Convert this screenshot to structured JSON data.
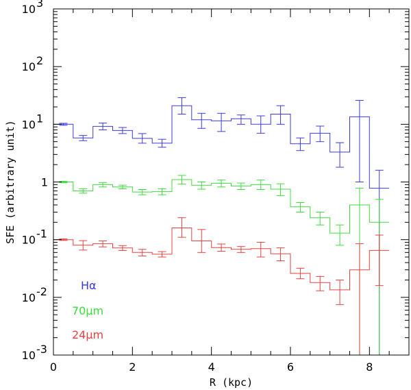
{
  "chart_data": {
    "type": "line",
    "style": "step-histogram-with-error-bars",
    "xlabel": "R (kpc)",
    "ylabel": "SFE (arbitrary unit)",
    "xlim": [
      0,
      9
    ],
    "ylim": [
      0.001,
      1000
    ],
    "yscale": "log",
    "x_ticks": [
      0,
      2,
      4,
      6,
      8
    ],
    "y_tick_labels": [
      {
        "value": 0.001,
        "base": "10",
        "exp": "-3"
      },
      {
        "value": 0.01,
        "base": "10",
        "exp": "-2"
      },
      {
        "value": 0.1,
        "base": "10",
        "exp": "-1"
      },
      {
        "value": 1,
        "base": "1",
        "exp": ""
      },
      {
        "value": 10,
        "base": "10",
        "exp": "1"
      },
      {
        "value": 100,
        "base": "10",
        "exp": "2"
      },
      {
        "value": 1000,
        "base": "10",
        "exp": "3"
      }
    ],
    "bin_centers": [
      0.25,
      0.75,
      1.25,
      1.75,
      2.25,
      2.75,
      3.25,
      3.75,
      4.25,
      4.75,
      5.25,
      5.75,
      6.25,
      6.75,
      7.25,
      7.75,
      8.25
    ],
    "bin_width": 0.5,
    "series": [
      {
        "name": "Hα",
        "color": "#3a3ae0",
        "values": [
          10,
          5.8,
          9.2,
          7.8,
          5.7,
          4.7,
          21,
          12,
          11.5,
          12.5,
          10,
          15,
          4.6,
          7.0,
          3.3,
          13.5,
          0.78
        ],
        "err_low": [
          9.6,
          5.2,
          8.0,
          6.9,
          4.7,
          4.0,
          15,
          8.5,
          7.5,
          10,
          7,
          10,
          3.5,
          5.0,
          1.8,
          1.0,
          0.001
        ],
        "err_high": [
          10.4,
          6.4,
          10.5,
          8.8,
          6.9,
          5.5,
          29,
          15.5,
          15.5,
          14.5,
          14,
          21,
          5.8,
          9.3,
          4.8,
          26,
          1.6
        ]
      },
      {
        "name": "70μm",
        "color": "#3cdc3c",
        "values": [
          1.0,
          0.7,
          0.9,
          0.82,
          0.67,
          0.68,
          1.1,
          0.88,
          0.95,
          0.85,
          0.9,
          0.75,
          0.37,
          0.24,
          0.13,
          0.4,
          0.2
        ],
        "err_low": [
          0.97,
          0.64,
          0.82,
          0.76,
          0.6,
          0.6,
          0.92,
          0.75,
          0.82,
          0.74,
          0.74,
          0.58,
          0.3,
          0.18,
          0.08,
          0.001,
          0.001
        ],
        "err_high": [
          1.03,
          0.76,
          0.98,
          0.88,
          0.74,
          0.76,
          1.3,
          1.0,
          1.08,
          0.96,
          1.08,
          0.93,
          0.44,
          0.3,
          0.18,
          0.78,
          0.5
        ]
      },
      {
        "name": "24μm",
        "color": "#e84040",
        "values": [
          0.1,
          0.08,
          0.085,
          0.072,
          0.06,
          0.056,
          0.16,
          0.095,
          0.073,
          0.068,
          0.07,
          0.057,
          0.026,
          0.018,
          0.0135,
          0.03,
          0.065
        ],
        "err_low": [
          0.097,
          0.066,
          0.075,
          0.065,
          0.052,
          0.05,
          0.11,
          0.06,
          0.063,
          0.06,
          0.05,
          0.043,
          0.021,
          0.013,
          0.0075,
          0.001,
          0.016
        ],
        "err_high": [
          0.103,
          0.096,
          0.095,
          0.079,
          0.068,
          0.062,
          0.24,
          0.15,
          0.084,
          0.076,
          0.09,
          0.072,
          0.032,
          0.023,
          0.02,
          0.085,
          0.12
        ]
      }
    ],
    "legend": [
      {
        "label": "Hα",
        "color": "#3a3ae0"
      },
      {
        "label": "70μm",
        "color": "#3cdc3c"
      },
      {
        "label": "24μm",
        "color": "#e84040"
      }
    ],
    "legend_position": "bottom-left"
  }
}
